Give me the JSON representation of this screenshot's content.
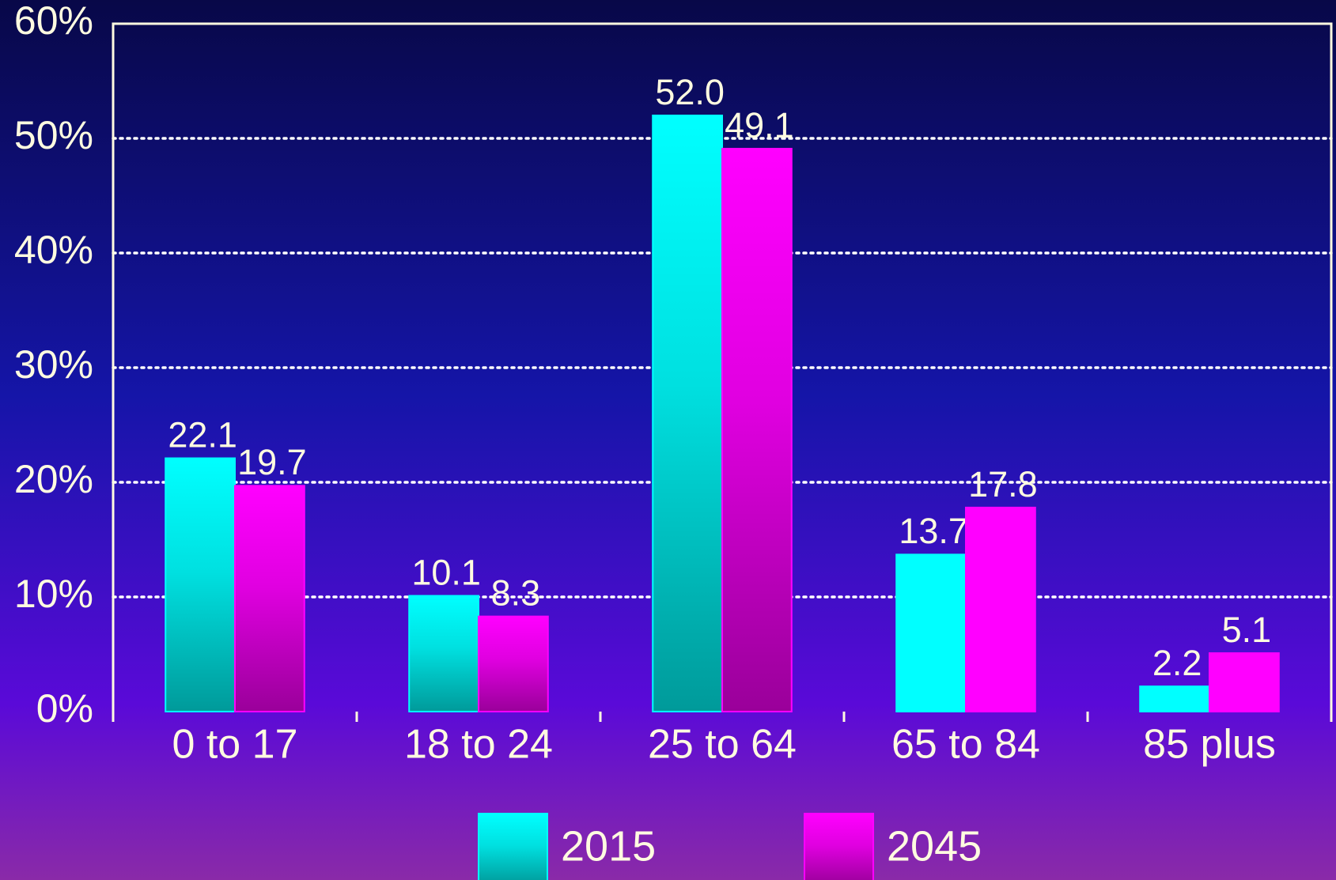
{
  "chart_data": {
    "type": "bar",
    "categories": [
      "0 to 17",
      "18 to 24",
      "25 to 64",
      "65 to 84",
      "85 plus"
    ],
    "series": [
      {
        "name": "2015",
        "color": "#00ffff",
        "values": [
          22.1,
          10.1,
          52.0,
          13.7,
          2.2
        ],
        "value_labels": [
          "22.1",
          "10.1",
          "52.0",
          "13.7",
          "2.2"
        ]
      },
      {
        "name": "2045",
        "color": "#ff00ff",
        "values": [
          19.7,
          8.3,
          49.1,
          17.8,
          5.1
        ],
        "value_labels": [
          "19.7",
          "8.3",
          "49.1",
          "17.8",
          "5.1"
        ]
      }
    ],
    "ylim": [
      0,
      60
    ],
    "yticks": [
      {
        "value": 0,
        "label": "0%"
      },
      {
        "value": 10,
        "label": "10%"
      },
      {
        "value": 20,
        "label": "20%"
      },
      {
        "value": 30,
        "label": "30%"
      },
      {
        "value": 40,
        "label": "40%"
      },
      {
        "value": 50,
        "label": "50%"
      },
      {
        "value": 60,
        "label": "60%"
      }
    ],
    "grid": true,
    "legend": "bottom"
  }
}
